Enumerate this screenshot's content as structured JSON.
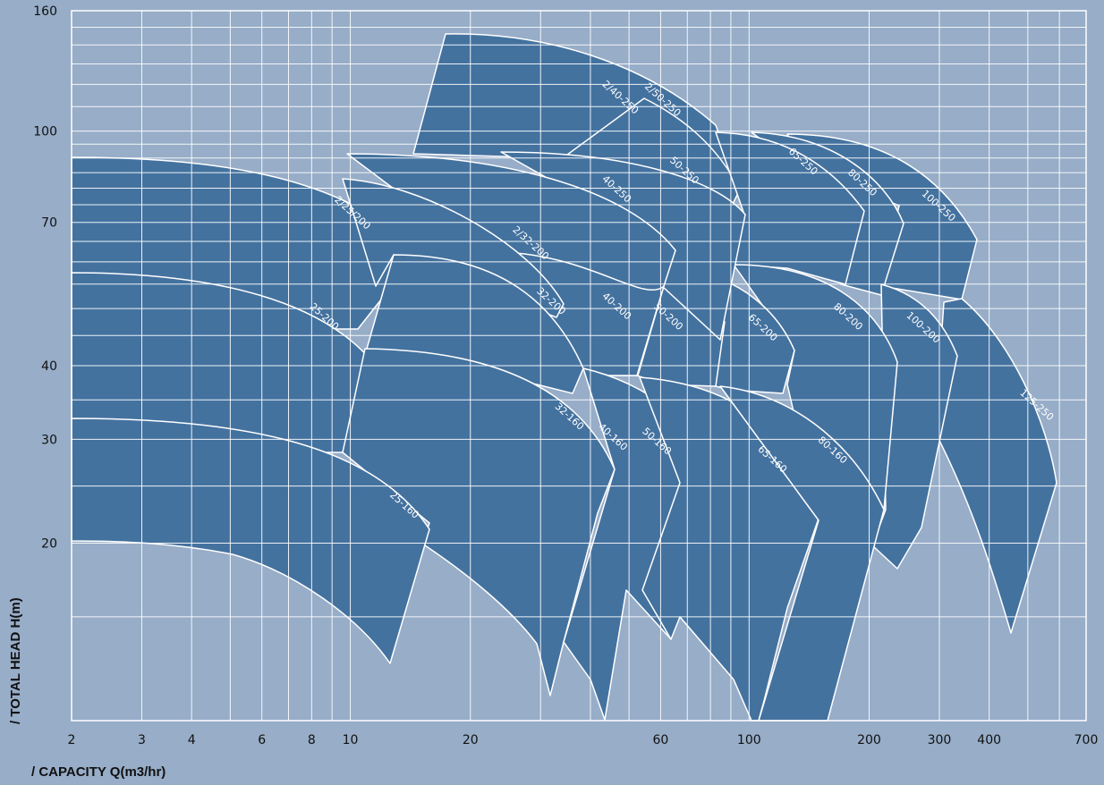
{
  "chart_data": {
    "type": "area",
    "title": "",
    "xlabel": "/ CAPACITY Q(m3/hr)",
    "ylabel": "/ TOTAL HEAD H(m)",
    "x_scale": "log",
    "y_scale": "log",
    "xlim": [
      2,
      700
    ],
    "ylim": [
      10,
      160
    ],
    "grid": true,
    "x_ticks": [
      2,
      3,
      4,
      6,
      8,
      10,
      20,
      60,
      100,
      200,
      300,
      400,
      700
    ],
    "y_ticks": [
      20,
      30,
      40,
      70,
      100,
      160
    ],
    "x_tick_labels": [
      "2",
      "3",
      "4",
      "6",
      "8",
      "10",
      "20",
      "60",
      "100",
      "200",
      "300",
      "400",
      "700"
    ],
    "y_tick_labels": [
      "20",
      "30",
      "40",
      "70",
      "100",
      "160"
    ],
    "series": [
      {
        "name": "2/25/200",
        "label_q": 10,
        "label_h": 72
      },
      {
        "name": "25-200",
        "label_q": 8.5,
        "label_h": 48
      },
      {
        "name": "25-160",
        "label_q": 13.5,
        "label_h": 23
      },
      {
        "name": "2/32-200",
        "label_q": 28,
        "label_h": 64
      },
      {
        "name": "32-200",
        "label_q": 31.5,
        "label_h": 51
      },
      {
        "name": "32-160",
        "label_q": 35,
        "label_h": 32.5
      },
      {
        "name": "2/40-250",
        "label_q": 47,
        "label_h": 113
      },
      {
        "name": "2/50-250",
        "label_q": 60,
        "label_h": 112
      },
      {
        "name": "40-250",
        "label_q": 46,
        "label_h": 79
      },
      {
        "name": "40-200",
        "label_q": 46,
        "label_h": 50
      },
      {
        "name": "40-160",
        "label_q": 45,
        "label_h": 30
      },
      {
        "name": "50-250",
        "label_q": 68,
        "label_h": 85
      },
      {
        "name": "50-200",
        "label_q": 62,
        "label_h": 48
      },
      {
        "name": "50-160",
        "label_q": 58,
        "label_h": 29.5
      },
      {
        "name": "65-250",
        "label_q": 135,
        "label_h": 88
      },
      {
        "name": "65-200",
        "label_q": 107,
        "label_h": 46
      },
      {
        "name": "65-160",
        "label_q": 113,
        "label_h": 27.5
      },
      {
        "name": "80-250",
        "label_q": 190,
        "label_h": 81
      },
      {
        "name": "80-200",
        "label_q": 175,
        "label_h": 48
      },
      {
        "name": "80-160",
        "label_q": 160,
        "label_h": 28.5
      },
      {
        "name": "100-250",
        "label_q": 295,
        "label_h": 74
      },
      {
        "name": "100-200",
        "label_q": 270,
        "label_h": 46
      },
      {
        "name": "125-250",
        "label_q": 520,
        "label_h": 34
      }
    ]
  }
}
